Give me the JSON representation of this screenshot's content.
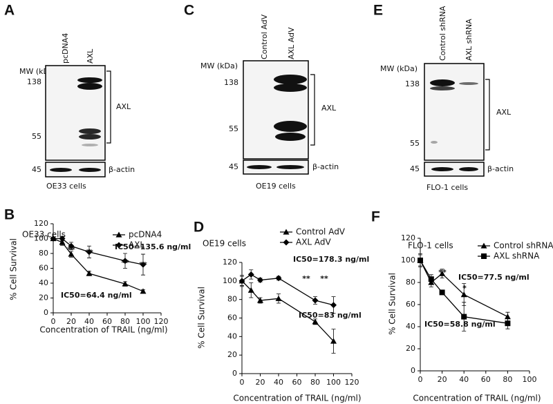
{
  "figure": {
    "panels": [
      {
        "letter": "A",
        "lanes": [
          "pcDNA4",
          "AXL"
        ],
        "mw_label": "MW (kDa)",
        "markers": [
          138,
          55
        ],
        "band_label": "AXL",
        "actin_marker": 45,
        "actin_label": "β-actin",
        "cell_line": "OE33 cells"
      },
      {
        "letter": "C",
        "lanes": [
          "Control AdV",
          "AXL AdV"
        ],
        "mw_label": "MW (kDa)",
        "markers": [
          138,
          55
        ],
        "band_label": "AXL",
        "actin_marker": 45,
        "actin_label": "β-actin",
        "cell_line": "OE19 cells"
      },
      {
        "letter": "E",
        "lanes": [
          "Control shRNA",
          "AXL shRNA"
        ],
        "mw_label": "MW (kDa)",
        "markers": [
          138,
          55
        ],
        "band_label": "AXL",
        "actin_marker": 45,
        "actin_label": "β-actin",
        "cell_line": "FLO-1 cells"
      }
    ]
  },
  "chart_data": [
    {
      "letter": "B",
      "type": "line",
      "title": "OE33 cells",
      "x_label": "Concentration of TRAIL (ng/ml)",
      "y_label": "% Cell Survival",
      "x": [
        0,
        10,
        20,
        40,
        80,
        100
      ],
      "series": [
        {
          "name": "pcDNA4",
          "color": "#000000",
          "marker": "triangle",
          "values": [
            100,
            95,
            79,
            53,
            39,
            29
          ],
          "errors": [
            2,
            4,
            4,
            3,
            3,
            2
          ]
        },
        {
          "name": "AXL",
          "color": "#000000",
          "marker": "diamond",
          "values": [
            100,
            100,
            90,
            82,
            70,
            65
          ],
          "errors": [
            2,
            3,
            5,
            8,
            10,
            14
          ]
        }
      ],
      "xlim": [
        0,
        120
      ],
      "xticks": [
        0,
        20,
        40,
        60,
        80,
        100,
        120
      ],
      "ylim": [
        0,
        120
      ],
      "yticks": [
        0,
        20,
        40,
        60,
        80,
        100,
        120
      ],
      "annotations": [
        "**",
        "**",
        "**",
        "**",
        "IC50=135.6 ng/ml",
        "IC50=64.4 ng/ml"
      ]
    },
    {
      "letter": "D",
      "type": "line",
      "title": "OE19 cells",
      "x_label": "Concentration of TRAIL (ng/ml)",
      "y_label": "% Cell Survival",
      "x": [
        0,
        10,
        20,
        40,
        80,
        100
      ],
      "series": [
        {
          "name": "Control AdV",
          "color": "#000000",
          "marker": "triangle",
          "values": [
            100,
            90,
            79,
            81,
            56,
            35
          ],
          "errors": [
            5,
            8,
            3,
            5,
            3,
            13
          ]
        },
        {
          "name": "AXL AdV",
          "color": "#000000",
          "marker": "diamond",
          "values": [
            100,
            107,
            101,
            103,
            79,
            74
          ],
          "errors": [
            6,
            5,
            2,
            2,
            4,
            9
          ]
        }
      ],
      "xlim": [
        0,
        120
      ],
      "xticks": [
        0,
        20,
        40,
        60,
        80,
        100,
        120
      ],
      "ylim": [
        0,
        120
      ],
      "yticks": [
        0,
        20,
        40,
        60,
        80,
        100,
        120
      ],
      "annotations": [
        "**",
        "**",
        "IC50=178.3 ng/ml",
        "IC50=83 ng/ml"
      ]
    },
    {
      "letter": "F",
      "type": "line",
      "title": "FLO-1 cells",
      "x_label": "Concentration of TRAIL (ng/ml)",
      "y_label": "% Cell Survival",
      "x": [
        0,
        10,
        20,
        40,
        80
      ],
      "series": [
        {
          "name": "Control shRNA",
          "color": "#000000",
          "marker": "triangle",
          "values": [
            100,
            80,
            88,
            69,
            49
          ],
          "errors": [
            5,
            4,
            4,
            10,
            4
          ]
        },
        {
          "name": "AXL shRNA",
          "color": "#000000",
          "marker": "square",
          "values": [
            100,
            83,
            71,
            49,
            43
          ],
          "errors": [
            6,
            4,
            2,
            13,
            5
          ]
        }
      ],
      "xlim": [
        0,
        100
      ],
      "xticks": [
        0,
        20,
        40,
        60,
        80,
        100
      ],
      "ylim": [
        0,
        120
      ],
      "yticks": [
        0,
        20,
        40,
        60,
        80,
        100,
        120
      ],
      "annotations": [
        "**",
        "*",
        "IC50=77.5 ng/ml",
        "IC50=58.8 ng/ml"
      ]
    }
  ]
}
